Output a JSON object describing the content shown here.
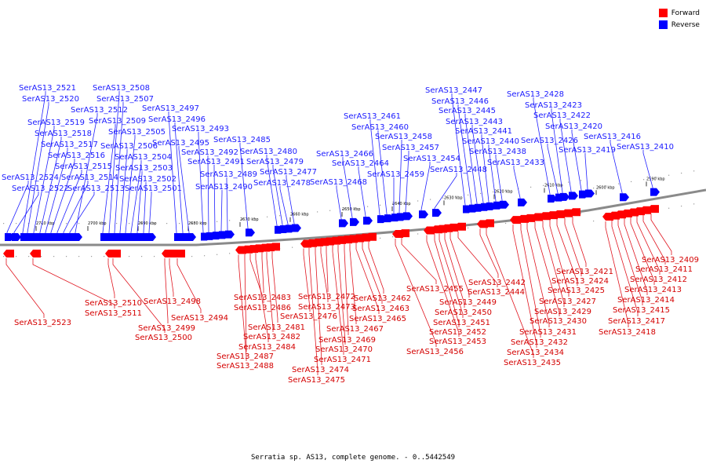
{
  "caption": "Serratia sp. AS13, complete genome. - 0..5442549",
  "legend": [
    {
      "label": "Forward",
      "color": "#ff0000"
    },
    {
      "label": "Reverse",
      "color": "#0000ff"
    }
  ],
  "colors": {
    "forward": "#ff0000",
    "reverse": "#0000ff",
    "backbone": "#888888"
  },
  "ticks": [
    "2710 kbp",
    "2700 kbp",
    "2690 kbp",
    "2680 kbp",
    "2670 kbp",
    "2660 kbp",
    "2650 kbp",
    "2640 kbp",
    "2630 kbp",
    "2620 kbp",
    "2610 kbp",
    "2600 kbp",
    "2590 kbp"
  ],
  "reverse_genes": [
    "SerAS13_2524",
    "SerAS13_2522",
    "SerAS13_2521",
    "SerAS13_2520",
    "SerAS13_2519",
    "SerAS13_2518",
    "SerAS13_2517",
    "SerAS13_2516",
    "SerAS13_2515",
    "SerAS13_2514",
    "SerAS13_2513",
    "SerAS13_2512",
    "SerAS13_2509",
    "SerAS13_2508",
    "SerAS13_2507",
    "SerAS13_2506",
    "SerAS13_2505",
    "SerAS13_2504",
    "SerAS13_2503",
    "SerAS13_2502",
    "SerAS13_2501",
    "SerAS13_2497",
    "SerAS13_2496",
    "SerAS13_2495",
    "SerAS13_2493",
    "SerAS13_2492",
    "SerAS13_2491",
    "SerAS13_2490",
    "SerAS13_2489",
    "SerAS13_2485",
    "SerAS13_2480",
    "SerAS13_2479",
    "SerAS13_2478",
    "SerAS13_2477",
    "SerAS13_2468",
    "SerAS13_2466",
    "SerAS13_2464",
    "SerAS13_2461",
    "SerAS13_2460",
    "SerAS13_2459",
    "SerAS13_2458",
    "SerAS13_2457",
    "SerAS13_2454",
    "SerAS13_2448",
    "SerAS13_2447",
    "SerAS13_2446",
    "SerAS13_2445",
    "SerAS13_2443",
    "SerAS13_2441",
    "SerAS13_2440",
    "SerAS13_2438",
    "SerAS13_2433",
    "SerAS13_2428",
    "SerAS13_2426",
    "SerAS13_2423",
    "SerAS13_2422",
    "SerAS13_2420",
    "SerAS13_2419",
    "SerAS13_2416",
    "SerAS13_2410"
  ],
  "forward_genes": [
    "SerAS13_2523",
    "SerAS13_2511",
    "SerAS13_2510",
    "SerAS13_2500",
    "SerAS13_2499",
    "SerAS13_2498",
    "SerAS13_2494",
    "SerAS13_2488",
    "SerAS13_2487",
    "SerAS13_2486",
    "SerAS13_2484",
    "SerAS13_2483",
    "SerAS13_2482",
    "SerAS13_2481",
    "SerAS13_2476",
    "SerAS13_2475",
    "SerAS13_2474",
    "SerAS13_2473",
    "SerAS13_2472",
    "SerAS13_2471",
    "SerAS13_2470",
    "SerAS13_2469",
    "SerAS13_2467",
    "SerAS13_2465",
    "SerAS13_2463",
    "SerAS13_2462",
    "SerAS13_2456",
    "SerAS13_2455",
    "SerAS13_2453",
    "SerAS13_2452",
    "SerAS13_2451",
    "SerAS13_2450",
    "SerAS13_2449",
    "SerAS13_2444",
    "SerAS13_2442",
    "SerAS13_2435",
    "SerAS13_2434",
    "SerAS13_2432",
    "SerAS13_2431",
    "SerAS13_2430",
    "SerAS13_2429",
    "SerAS13_2427",
    "SerAS13_2425",
    "SerAS13_2424",
    "SerAS13_2421",
    "SerAS13_2418",
    "SerAS13_2417",
    "SerAS13_2415",
    "SerAS13_2414",
    "SerAS13_2413",
    "SerAS13_2412",
    "SerAS13_2411",
    "SerAS13_2409"
  ]
}
